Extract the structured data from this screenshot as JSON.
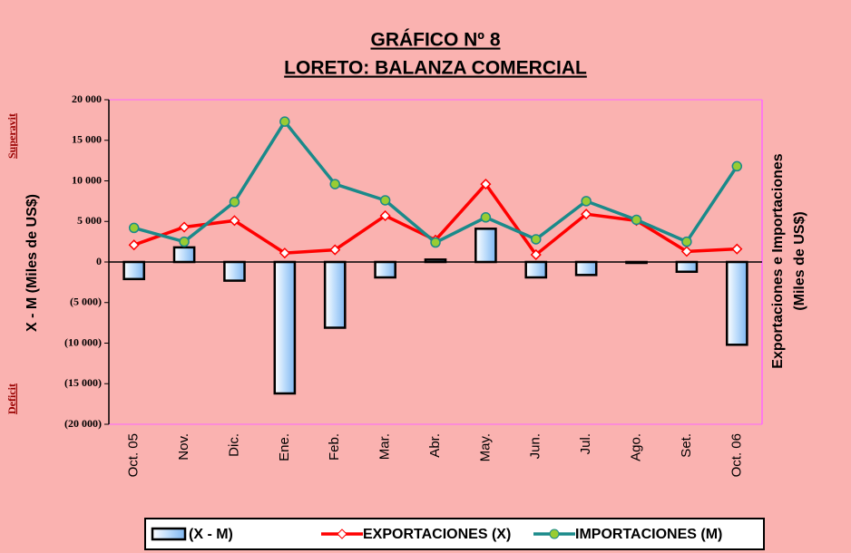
{
  "chart_data": {
    "type": "combo",
    "title": "GRÁFICO Nº 8",
    "subtitle": "LORETO: BALANZA COMERCIAL",
    "y_label": "X - M (Miles de US$)",
    "y2_label": [
      "Exportaciones e Importaciones",
      "(Miles de US$)"
    ],
    "annotations": [
      "Superavit",
      "Deficit"
    ],
    "categories": [
      "Oct. 05",
      "Nov.",
      "Dic.",
      "Ene.",
      "Feb.",
      "Mar.",
      "Abr.",
      "May.",
      "Jun.",
      "Jul.",
      "Ago.",
      "Set.",
      "Oct. 06"
    ],
    "series": [
      {
        "name": "(X - M)",
        "type": "bar",
        "color": "#bcdcfb",
        "values": [
          -2100,
          1800,
          -2300,
          -16200,
          -8100,
          -1900,
          300,
          4100,
          -1900,
          -1600,
          -100,
          -1200,
          -10200
        ]
      },
      {
        "name": "EXPORTACIONES (X)",
        "type": "line",
        "color": "#ff0000",
        "values": [
          2100,
          4300,
          5100,
          1100,
          1500,
          5700,
          2700,
          9600,
          900,
          5900,
          5100,
          1300,
          1600
        ]
      },
      {
        "name": "IMPORTACIONES (M)",
        "type": "line",
        "color": "#1a8a8a",
        "marker_color": "#99cc33",
        "values": [
          4200,
          2500,
          7400,
          17300,
          9600,
          7600,
          2400,
          5500,
          2800,
          7500,
          5200,
          2500,
          11800
        ]
      }
    ],
    "ylim": [
      -20000,
      20000
    ],
    "yticks": [
      {
        "value": 20000,
        "label": "20 000"
      },
      {
        "value": 15000,
        "label": "15 000"
      },
      {
        "value": 10000,
        "label": "10 000"
      },
      {
        "value": 5000,
        "label": "5 000"
      },
      0,
      {
        "value": -5000,
        "label": "(5 000)"
      },
      {
        "value": -10000,
        "label": "(10 000)"
      },
      {
        "value": -15000,
        "label": "(15 000)"
      },
      {
        "value": -20000,
        "label": "(20 000)"
      }
    ],
    "grid": false,
    "legend": "bottom"
  }
}
